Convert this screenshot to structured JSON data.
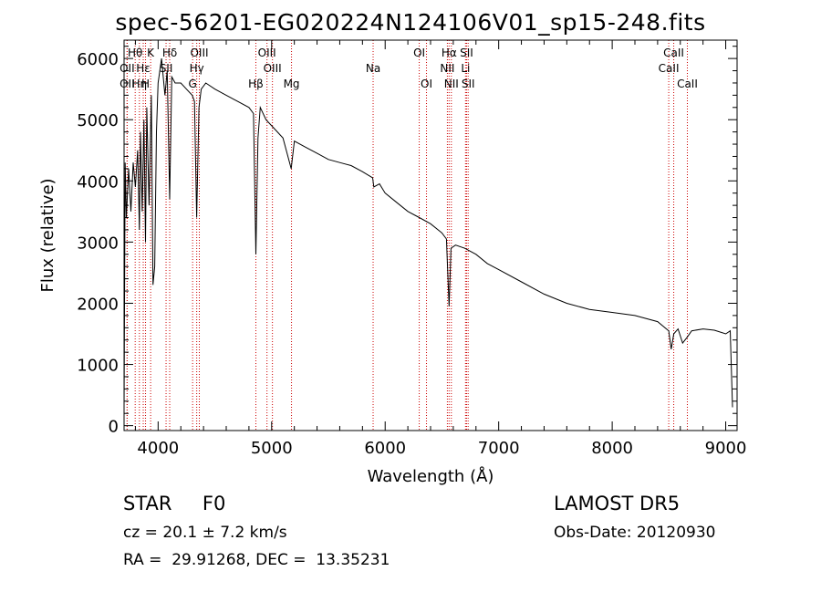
{
  "chart_data": {
    "type": "line",
    "title": "spec-56201-EG020224N124106V01_sp15-248.fits",
    "xlabel": "Wavelength (Å)",
    "ylabel": "Flux (relative)",
    "xlim": [
      3700,
      9100
    ],
    "ylim": [
      -80,
      6300
    ],
    "xticks": [
      4000,
      5000,
      6000,
      7000,
      8000,
      9000
    ],
    "xtick_labels": [
      "4000",
      "5000",
      "6000",
      "7000",
      "8000",
      "9000"
    ],
    "yticks": [
      0,
      1000,
      2000,
      3000,
      4000,
      5000,
      6000
    ],
    "ytick_labels": [
      "0",
      "1000",
      "2000",
      "3000",
      "4000",
      "5000",
      "6000"
    ],
    "line_color": "#000000",
    "marker_color": "#cc0000",
    "series": [
      {
        "x": [
          3700,
          3710,
          3720,
          3740,
          3760,
          3780,
          3800,
          3820,
          3835,
          3845,
          3860,
          3875,
          3889,
          3900,
          3920,
          3940,
          3955,
          3970,
          3985,
          4000,
          4030,
          4060,
          4080,
          4102,
          4120,
          4150,
          4200,
          4250,
          4300,
          4320,
          4340,
          4360,
          4380,
          4420,
          4500,
          4600,
          4700,
          4800,
          4840,
          4861,
          4880,
          4900,
          4950,
          5000,
          5100,
          5172,
          5200,
          5300,
          5400,
          5500,
          5600,
          5700,
          5800,
          5890,
          5900,
          5950,
          6000,
          6100,
          6200,
          6300,
          6400,
          6500,
          6540,
          6563,
          6580,
          6620,
          6700,
          6800,
          6900,
          7000,
          7200,
          7400,
          7600,
          7800,
          8000,
          8200,
          8400,
          8498,
          8520,
          8542,
          8580,
          8620,
          8662,
          8700,
          8800,
          8900,
          9000,
          9040,
          9060
        ],
        "y": [
          300,
          4300,
          3400,
          4200,
          3500,
          4300,
          3900,
          4500,
          3200,
          4800,
          3500,
          5000,
          3000,
          5200,
          3600,
          5400,
          2300,
          2600,
          4800,
          5600,
          6000,
          5400,
          5800,
          3700,
          5700,
          5600,
          5600,
          5500,
          5400,
          5300,
          3400,
          5200,
          5500,
          5600,
          5500,
          5400,
          5300,
          5200,
          5100,
          2800,
          4700,
          5200,
          5000,
          4900,
          4700,
          4200,
          4650,
          4550,
          4450,
          4350,
          4300,
          4250,
          4150,
          4050,
          3900,
          3950,
          3800,
          3650,
          3500,
          3400,
          3300,
          3150,
          3050,
          1950,
          2900,
          2950,
          2900,
          2800,
          2650,
          2550,
          2350,
          2150,
          2000,
          1900,
          1850,
          1800,
          1700,
          1550,
          1250,
          1500,
          1580,
          1350,
          1450,
          1550,
          1580,
          1560,
          1500,
          1550,
          300
        ]
      }
    ],
    "line_markers": [
      {
        "name": "OII",
        "x": 3727,
        "row": 2
      },
      {
        "name": "Hθ",
        "x": 3798,
        "row": 0
      },
      {
        "name": "OII",
        "x": 3727,
        "row": 1
      },
      {
        "name": "Hε",
        "x": 3869,
        "row": 1
      },
      {
        "name": "Hη",
        "x": 3835,
        "row": 2
      },
      {
        "name": "K",
        "x": 3934,
        "row": 0
      },
      {
        "name": "H",
        "x": 3889,
        "row": 2
      },
      {
        "name": "Hδ",
        "x": 4102,
        "row": 0
      },
      {
        "name": "SII",
        "x": 4070,
        "row": 1
      },
      {
        "name": "OIII",
        "x": 4363,
        "row": 0
      },
      {
        "name": "Hγ",
        "x": 4340,
        "row": 1
      },
      {
        "name": "G",
        "x": 4304,
        "row": 2
      },
      {
        "name": "Hβ",
        "x": 4861,
        "row": 3
      },
      {
        "name": "OIII",
        "x": 4959,
        "row": 0
      },
      {
        "name": "OIII",
        "x": 5007,
        "row": 1
      },
      {
        "name": "Mg",
        "x": 5175,
        "row": 3
      },
      {
        "name": "Na",
        "x": 5894,
        "row": 1
      },
      {
        "name": "OI",
        "x": 6300,
        "row": 0
      },
      {
        "name": "OI",
        "x": 6364,
        "row": 2
      },
      {
        "name": "Hα",
        "x": 6563,
        "row": 0
      },
      {
        "name": "NII",
        "x": 6548,
        "row": 1
      },
      {
        "name": "NII",
        "x": 6583,
        "row": 2
      },
      {
        "name": "SII",
        "x": 6717,
        "row": 0
      },
      {
        "name": "Li",
        "x": 6708,
        "row": 1
      },
      {
        "name": "SII",
        "x": 6731,
        "row": 2
      },
      {
        "name": "CaII",
        "x": 8542,
        "row": 0
      },
      {
        "name": "CaII",
        "x": 8498,
        "row": 1
      },
      {
        "name": "CaII",
        "x": 8662,
        "row": 2
      }
    ]
  },
  "footer": {
    "object_type": "STAR     F0",
    "survey": "LAMOST DR5",
    "redshift": "cz = 20.1 ± 7.2 km/s",
    "obs_date": "Obs-Date: 20120930",
    "coordinates": "RA =  29.91268, DEC =  13.35231"
  }
}
